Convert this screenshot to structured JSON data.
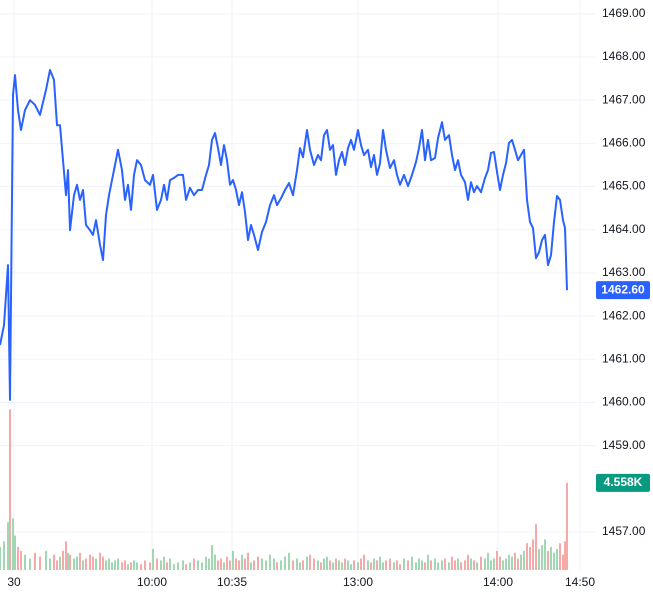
{
  "chart_data": {
    "type": "line",
    "xlim": [
      0,
      595
    ],
    "xticks": [
      {
        "value": 14,
        "label": "30"
      },
      {
        "value": 152,
        "label": "10:00"
      },
      {
        "value": 232,
        "label": "10:35"
      },
      {
        "value": 358,
        "label": "13:00"
      },
      {
        "value": 498,
        "label": "14:00"
      },
      {
        "value": 580,
        "label": "14:50"
      }
    ],
    "ylim": [
      1456.12,
      1469.32
    ],
    "yticks": [
      {
        "value": 1469,
        "label": "1469.00"
      },
      {
        "value": 1468,
        "label": "1468.00"
      },
      {
        "value": 1467,
        "label": "1467.00"
      },
      {
        "value": 1466,
        "label": "1466.00"
      },
      {
        "value": 1465,
        "label": "1465.00"
      },
      {
        "value": 1464,
        "label": "1464.00"
      },
      {
        "value": 1463,
        "label": "1463.00"
      },
      {
        "value": 1462,
        "label": "1462.00"
      },
      {
        "value": 1461,
        "label": "1461.00"
      },
      {
        "value": 1460,
        "label": "1460.00"
      },
      {
        "value": 1459,
        "label": "1459.00"
      },
      {
        "value": 1457,
        "label": "1457.00"
      }
    ],
    "y2lim": [
      0,
      29.8
    ],
    "grid": true,
    "x": [
      0,
      4,
      8,
      10,
      13,
      15,
      18,
      21,
      25,
      30,
      35,
      40,
      46,
      50,
      54,
      57,
      60,
      63,
      66,
      68,
      70,
      74,
      77,
      80,
      83,
      86,
      90,
      93,
      96,
      100,
      103,
      106,
      109,
      112,
      115,
      118,
      122,
      125,
      128,
      131,
      134,
      137,
      141,
      145,
      150,
      153,
      157,
      161,
      164,
      167,
      170,
      174,
      178,
      183,
      186,
      190,
      194,
      198,
      202,
      206,
      209,
      212,
      215,
      218,
      221,
      224,
      227,
      230,
      233,
      236,
      239,
      242,
      245,
      248,
      251,
      254,
      258,
      262,
      266,
      270,
      274,
      277,
      281,
      285,
      289,
      293,
      297,
      300,
      303,
      307,
      310,
      314,
      318,
      321,
      324,
      327,
      330,
      333,
      336,
      339,
      342,
      345,
      348,
      351,
      354,
      358,
      361,
      364,
      368,
      371,
      374,
      377,
      380,
      383,
      386,
      390,
      394,
      397,
      400,
      404,
      408,
      412,
      416,
      419,
      422,
      425,
      428,
      431,
      435,
      438,
      442,
      445,
      449,
      452,
      455,
      458,
      461,
      465,
      468,
      471,
      474,
      477,
      481,
      485,
      488,
      491,
      494,
      497,
      500,
      503,
      506,
      509,
      512,
      515,
      518,
      521,
      524,
      527,
      530,
      533,
      536,
      539,
      542,
      545,
      548,
      551,
      554,
      557,
      560,
      563,
      565,
      567
    ],
    "series": [
      {
        "color": "#2962ff",
        "label_color": "#2962ff",
        "values": [
          1461.33,
          1461.79,
          1463.18,
          1460.06,
          1467.12,
          1467.58,
          1466.77,
          1466.31,
          1466.77,
          1467.0,
          1466.89,
          1466.66,
          1467.24,
          1467.7,
          1467.47,
          1466.42,
          1466.42,
          1465.61,
          1464.8,
          1465.38,
          1463.99,
          1464.8,
          1465.04,
          1464.69,
          1464.92,
          1464.11,
          1463.99,
          1463.88,
          1464.22,
          1463.65,
          1463.3,
          1464.34,
          1464.8,
          1465.15,
          1465.5,
          1465.85,
          1465.38,
          1464.69,
          1465.04,
          1464.46,
          1465.27,
          1465.61,
          1465.5,
          1465.15,
          1465.04,
          1465.27,
          1464.46,
          1464.69,
          1465.04,
          1464.69,
          1465.15,
          1465.2,
          1465.27,
          1465.27,
          1464.69,
          1464.97,
          1464.8,
          1464.92,
          1464.92,
          1465.27,
          1465.5,
          1466.08,
          1466.24,
          1465.89,
          1465.5,
          1465.96,
          1465.61,
          1465.04,
          1465.15,
          1464.92,
          1464.57,
          1464.87,
          1464.41,
          1463.76,
          1464.11,
          1463.88,
          1463.53,
          1463.95,
          1464.18,
          1464.57,
          1464.8,
          1464.57,
          1464.73,
          1464.92,
          1465.08,
          1464.8,
          1465.38,
          1465.89,
          1465.68,
          1466.31,
          1465.85,
          1465.5,
          1465.73,
          1465.61,
          1466.19,
          1466.31,
          1465.85,
          1465.96,
          1465.27,
          1465.61,
          1465.8,
          1465.5,
          1465.89,
          1466.08,
          1465.85,
          1466.31,
          1465.96,
          1465.73,
          1465.85,
          1465.45,
          1465.73,
          1465.27,
          1465.54,
          1466.31,
          1465.85,
          1465.43,
          1465.61,
          1465.27,
          1465.04,
          1465.27,
          1465.01,
          1465.27,
          1465.57,
          1465.89,
          1466.31,
          1465.61,
          1466.08,
          1465.61,
          1465.66,
          1466.12,
          1466.49,
          1466.08,
          1466.19,
          1465.73,
          1465.38,
          1465.61,
          1465.27,
          1465.1,
          1464.69,
          1465.1,
          1464.87,
          1465.01,
          1464.87,
          1465.2,
          1465.38,
          1465.78,
          1465.8,
          1465.34,
          1464.92,
          1465.27,
          1465.54,
          1466.01,
          1466.08,
          1465.85,
          1465.61,
          1465.73,
          1465.85,
          1464.69,
          1464.18,
          1464.04,
          1463.34,
          1463.48,
          1463.76,
          1463.88,
          1463.18,
          1463.41,
          1464.18,
          1464.78,
          1464.69,
          1464.22,
          1464.04,
          1462.6
        ],
        "value_labels": [
          null,
          null,
          null,
          null,
          null,
          null,
          null,
          null,
          null,
          null,
          null,
          null,
          null,
          null,
          null,
          null,
          null,
          null,
          null,
          null,
          null,
          null,
          null,
          null,
          null,
          null,
          null,
          null,
          null,
          null,
          null,
          null,
          null,
          null,
          null,
          null,
          null,
          null,
          null,
          null,
          null,
          null,
          null,
          null,
          null,
          null,
          null,
          null,
          null,
          null,
          null,
          null,
          null,
          null,
          null,
          null,
          null,
          null,
          null,
          null,
          null,
          null,
          null,
          null,
          null,
          null,
          null,
          null,
          null,
          null,
          null,
          null,
          null,
          null,
          null,
          null,
          null,
          null,
          null,
          null,
          null,
          null,
          null,
          null,
          null,
          null,
          null,
          null,
          null,
          null,
          null,
          null,
          null,
          null,
          null,
          null,
          null,
          null,
          null,
          null,
          null,
          null,
          null,
          null,
          null,
          null,
          null,
          null,
          null,
          null,
          null,
          null,
          null,
          null,
          null,
          null,
          null,
          null,
          null,
          null,
          null,
          null,
          null,
          null,
          null,
          null,
          null,
          null,
          null,
          null,
          null,
          null,
          null,
          null,
          null,
          null,
          null,
          null,
          null,
          null,
          null,
          null,
          null,
          null,
          null,
          null,
          null,
          null,
          null,
          null,
          null,
          null,
          null,
          null,
          null,
          null,
          null,
          null,
          null,
          null,
          null,
          null,
          null,
          null,
          null,
          null,
          null,
          null,
          null,
          null,
          null,
          "1462.60"
        ]
      },
      {
        "axis": "y2",
        "up_color": "#9fd8b2",
        "down_color": "#f5a9a9",
        "label_color": "#089981",
        "values": [
          1.2,
          1.5,
          2.5,
          8.4,
          2.7,
          1.8,
          1.2,
          1.0,
          0.8,
          0.6,
          0.9,
          0.7,
          1.0,
          0.6,
          0.8,
          0.5,
          0.7,
          1.0,
          1.5,
          0.9,
          0.8,
          0.6,
          0.7,
          0.9,
          0.5,
          0.6,
          0.8,
          0.7,
          0.6,
          0.9,
          0.7,
          0.5,
          0.6,
          0.4,
          0.5,
          0.6,
          0.4,
          0.5,
          0.3,
          0.4,
          0.5,
          0.4,
          0.3,
          0.5,
          0.4,
          1.1,
          0.6,
          0.5,
          0.7,
          0.4,
          0.6,
          0.3,
          0.4,
          0.5,
          0.3,
          0.4,
          0.6,
          0.5,
          0.4,
          0.7,
          0.6,
          1.3,
          0.8,
          0.5,
          0.6,
          0.4,
          0.7,
          0.5,
          1.0,
          0.6,
          0.5,
          0.8,
          0.6,
          0.9,
          0.4,
          0.5,
          0.7,
          0.6,
          0.5,
          0.8,
          0.6,
          0.4,
          0.5,
          0.7,
          0.9,
          0.5,
          0.6,
          0.4,
          0.5,
          0.7,
          0.8,
          0.6,
          0.5,
          0.4,
          0.6,
          0.7,
          0.5,
          0.4,
          0.6,
          0.5,
          0.4,
          0.6,
          0.5,
          0.3,
          0.5,
          0.4,
          0.6,
          0.8,
          0.5,
          0.4,
          0.6,
          0.5,
          0.7,
          0.4,
          0.5,
          0.6,
          0.4,
          0.5,
          0.3,
          0.6,
          0.5,
          0.7,
          0.4,
          0.6,
          0.5,
          0.4,
          0.8,
          0.5,
          0.6,
          0.4,
          0.5,
          0.6,
          0.4,
          0.7,
          0.5,
          0.6,
          0.4,
          0.5,
          0.8,
          0.6,
          0.5,
          0.4,
          0.7,
          0.6,
          0.9,
          0.5,
          0.6,
          1.0,
          0.7,
          0.5,
          0.6,
          0.8,
          0.7,
          0.9,
          0.6,
          0.8,
          1.0,
          1.4,
          1.2,
          1.6,
          2.4,
          1.1,
          1.3,
          1.6,
          1.0,
          1.2,
          0.9,
          1.1,
          1.4,
          0.8,
          1.5,
          4.558
        ],
        "value_labels": [
          null,
          null,
          null,
          null,
          null,
          null,
          null,
          null,
          null,
          null,
          null,
          null,
          null,
          null,
          null,
          null,
          null,
          null,
          null,
          null,
          null,
          null,
          null,
          null,
          null,
          null,
          null,
          null,
          null,
          null,
          null,
          null,
          null,
          null,
          null,
          null,
          null,
          null,
          null,
          null,
          null,
          null,
          null,
          null,
          null,
          null,
          null,
          null,
          null,
          null,
          null,
          null,
          null,
          null,
          null,
          null,
          null,
          null,
          null,
          null,
          null,
          null,
          null,
          null,
          null,
          null,
          null,
          null,
          null,
          null,
          null,
          null,
          null,
          null,
          null,
          null,
          null,
          null,
          null,
          null,
          null,
          null,
          null,
          null,
          null,
          null,
          null,
          null,
          null,
          null,
          null,
          null,
          null,
          null,
          null,
          null,
          null,
          null,
          null,
          null,
          null,
          null,
          null,
          null,
          null,
          null,
          null,
          null,
          null,
          null,
          null,
          null,
          null,
          null,
          null,
          null,
          null,
          null,
          null,
          null,
          null,
          null,
          null,
          null,
          null,
          null,
          null,
          null,
          null,
          null,
          null,
          null,
          null,
          null,
          null,
          null,
          null,
          null,
          null,
          null,
          null,
          null,
          null,
          null,
          null,
          null,
          null,
          null,
          null,
          null,
          null,
          null,
          null,
          null,
          null,
          null,
          null,
          null,
          null,
          null,
          null,
          null,
          null,
          null,
          null,
          null,
          null,
          null,
          null,
          null,
          null,
          "4.558K"
        ]
      }
    ]
  }
}
